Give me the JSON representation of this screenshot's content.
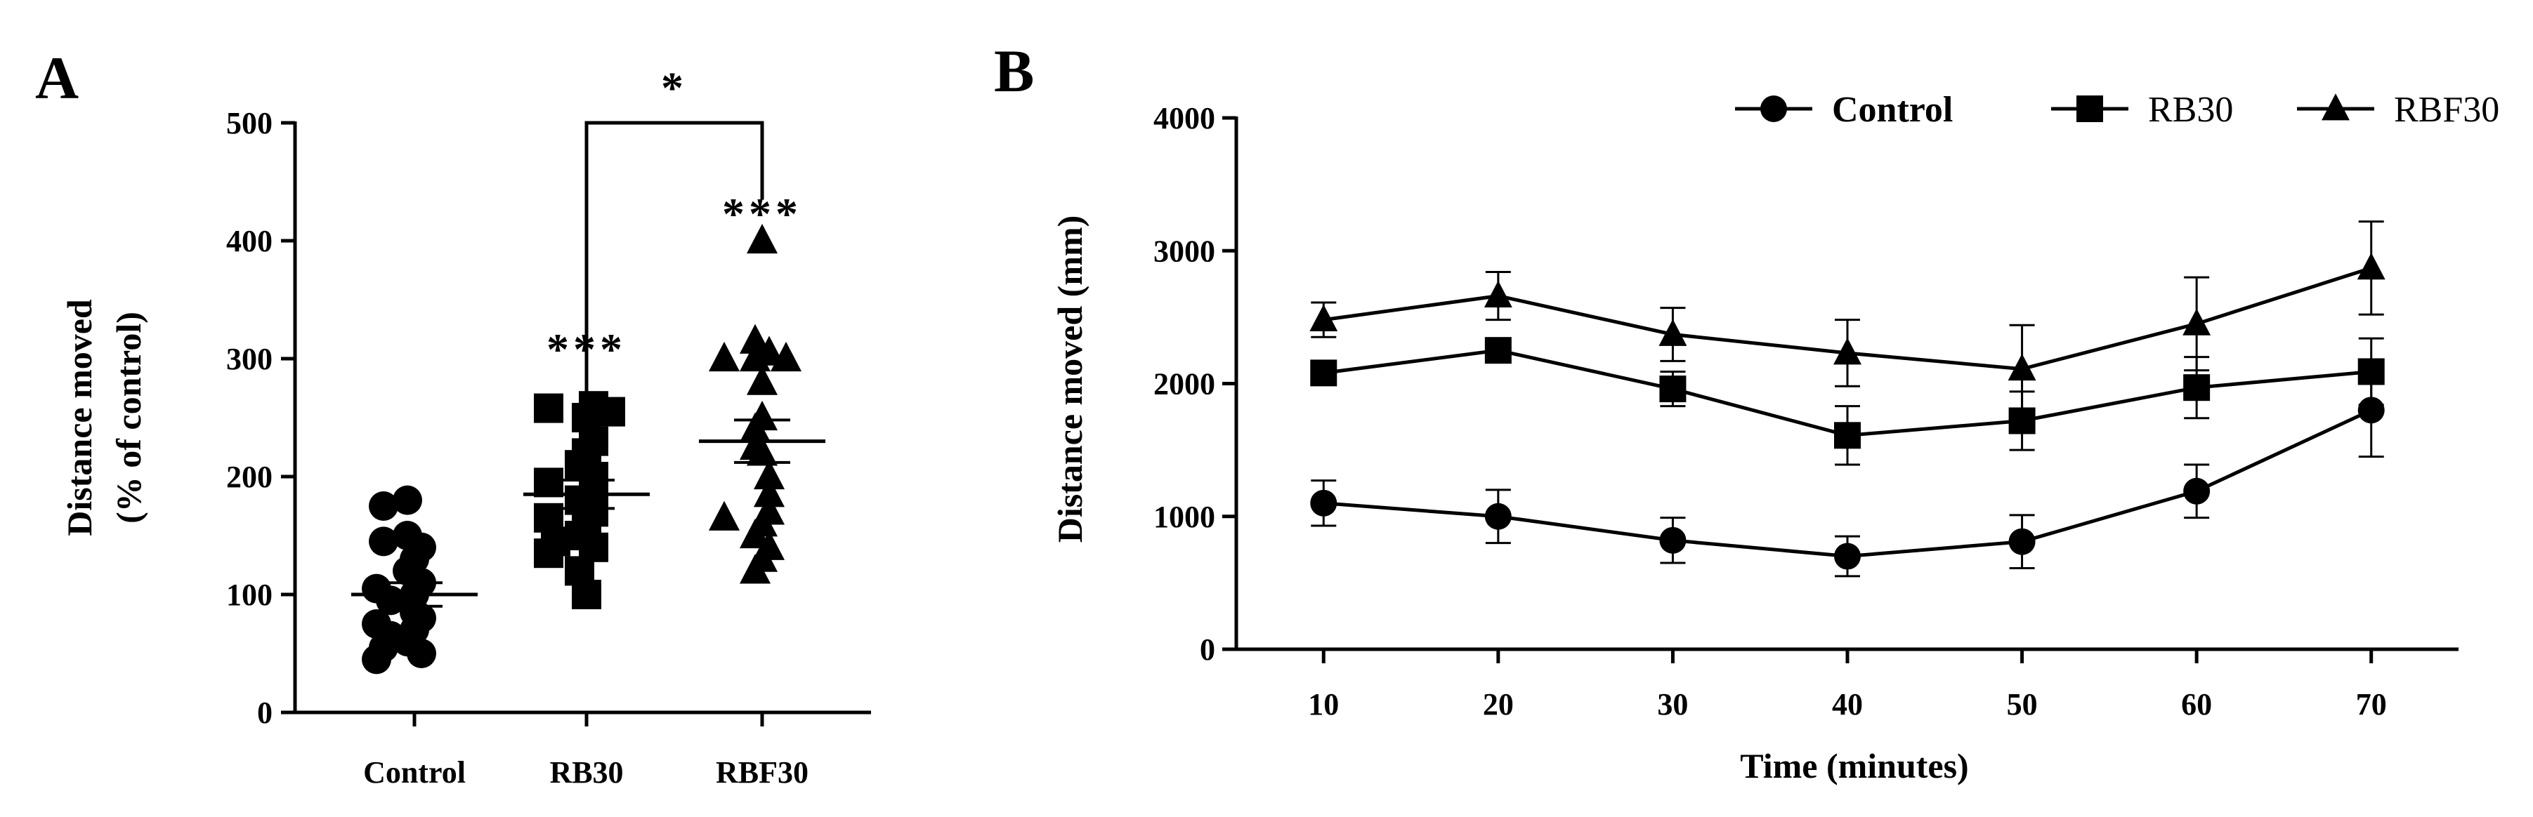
{
  "chart_data": [
    {
      "panel": "A",
      "type": "scatter",
      "ylabel": "Distance moved",
      "ylabel2": "(% of control)",
      "ylim": [
        0,
        500
      ],
      "yticks": [
        0,
        100,
        200,
        300,
        400,
        500
      ],
      "categories": [
        "Control",
        "RB30",
        "RBF30"
      ],
      "series": [
        {
          "category": "Control",
          "marker": "circle",
          "mean": 100,
          "sem": 10,
          "points": [
            180,
            175,
            150,
            145,
            140,
            130,
            120,
            110,
            105,
            100,
            95,
            85,
            80,
            75,
            70,
            65,
            60,
            55,
            50,
            45
          ]
        },
        {
          "category": "RB30",
          "marker": "square",
          "mean": 185,
          "sem": 12,
          "points": [
            260,
            258,
            255,
            250,
            230,
            220,
            210,
            200,
            195,
            185,
            180,
            170,
            165,
            160,
            150,
            145,
            140,
            135,
            120,
            100
          ]
        },
        {
          "category": "RBF30",
          "marker": "triangle",
          "mean": 230,
          "sem": 18,
          "points": [
            400,
            315,
            305,
            300,
            300,
            300,
            280,
            250,
            240,
            225,
            220,
            200,
            185,
            170,
            165,
            160,
            150,
            140,
            130,
            120
          ]
        }
      ],
      "annotations": [
        {
          "text": "***",
          "category": "RB30",
          "y": 310
        },
        {
          "text": "***",
          "category": "RBF30",
          "y": 425
        },
        {
          "text": "*",
          "between": [
            "RB30",
            "RBF30"
          ],
          "bracket_y": 500,
          "y": 520
        }
      ]
    },
    {
      "panel": "B",
      "type": "line",
      "xlabel": "Time (minutes)",
      "ylabel": "Distance moved (mm)",
      "x": [
        10,
        20,
        30,
        40,
        50,
        60,
        70
      ],
      "xlim": [
        5,
        75
      ],
      "ylim": [
        0,
        4000
      ],
      "yticks": [
        0,
        1000,
        2000,
        3000,
        4000
      ],
      "legend_position": "top-right",
      "series": [
        {
          "name": "Control",
          "marker": "circle",
          "values": [
            1100,
            1000,
            820,
            700,
            810,
            1190,
            1800
          ],
          "errors": [
            170,
            200,
            170,
            150,
            200,
            200,
            350
          ]
        },
        {
          "name": "RB30",
          "marker": "square",
          "values": [
            2080,
            2250,
            1960,
            1610,
            1720,
            1970,
            2090
          ],
          "errors": [
            60,
            70,
            130,
            220,
            220,
            230,
            250
          ]
        },
        {
          "name": "RBF30",
          "marker": "triangle",
          "values": [
            2480,
            2660,
            2370,
            2230,
            2110,
            2450,
            2870
          ],
          "errors": [
            130,
            180,
            200,
            250,
            330,
            350,
            350
          ]
        }
      ]
    }
  ]
}
